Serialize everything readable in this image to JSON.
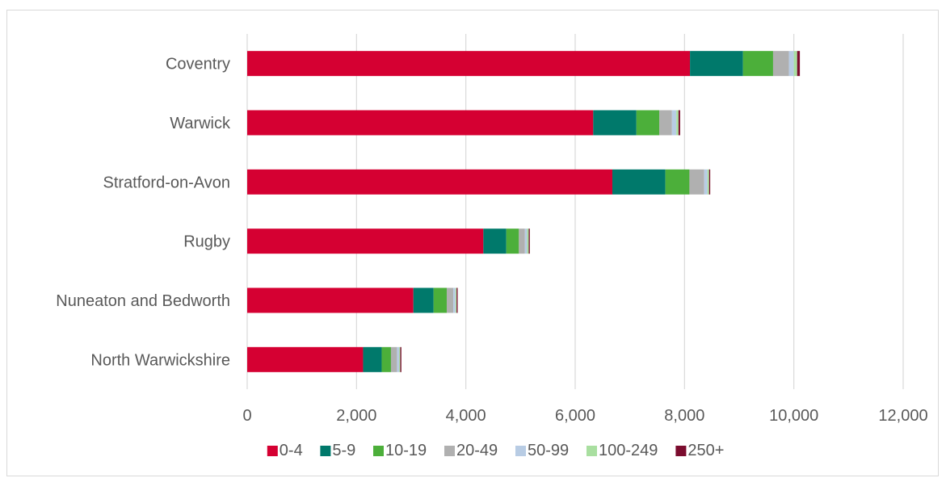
{
  "chart_data": {
    "type": "bar",
    "orientation": "horizontal",
    "stacked": true,
    "categories": [
      "Coventry",
      "Warwick",
      "Stratford-on-Avon",
      "Rugby",
      "Nuneaton and Bedworth",
      "North Warwickshire"
    ],
    "series": [
      {
        "name": "0-4",
        "color": "#d50032",
        "values": [
          8100,
          6330,
          6680,
          4320,
          3040,
          2120
        ]
      },
      {
        "name": "5-9",
        "color": "#00796b",
        "values": [
          970,
          790,
          970,
          420,
          370,
          340
        ]
      },
      {
        "name": "10-19",
        "color": "#4caf3a",
        "values": [
          550,
          420,
          440,
          230,
          240,
          170
        ]
      },
      {
        "name": "20-49",
        "color": "#b0b0b0",
        "values": [
          290,
          230,
          270,
          110,
          120,
          110
        ]
      },
      {
        "name": "50-99",
        "color": "#b8cce4",
        "values": [
          90,
          80,
          60,
          40,
          40,
          40
        ]
      },
      {
        "name": "100-249",
        "color": "#a9dfa0",
        "values": [
          60,
          40,
          30,
          30,
          20,
          20
        ]
      },
      {
        "name": "250+",
        "color": "#7b0c2e",
        "values": [
          50,
          30,
          20,
          20,
          20,
          20
        ]
      }
    ],
    "xlim": [
      0,
      12000
    ],
    "xticks": [
      0,
      2000,
      4000,
      6000,
      8000,
      10000,
      12000
    ],
    "xtick_labels": [
      "0",
      "2,000",
      "4,000",
      "6,000",
      "8,000",
      "10,000",
      "12,000"
    ],
    "grid": "vertical",
    "legend_position": "bottom",
    "title": "",
    "xlabel": "",
    "ylabel": ""
  }
}
